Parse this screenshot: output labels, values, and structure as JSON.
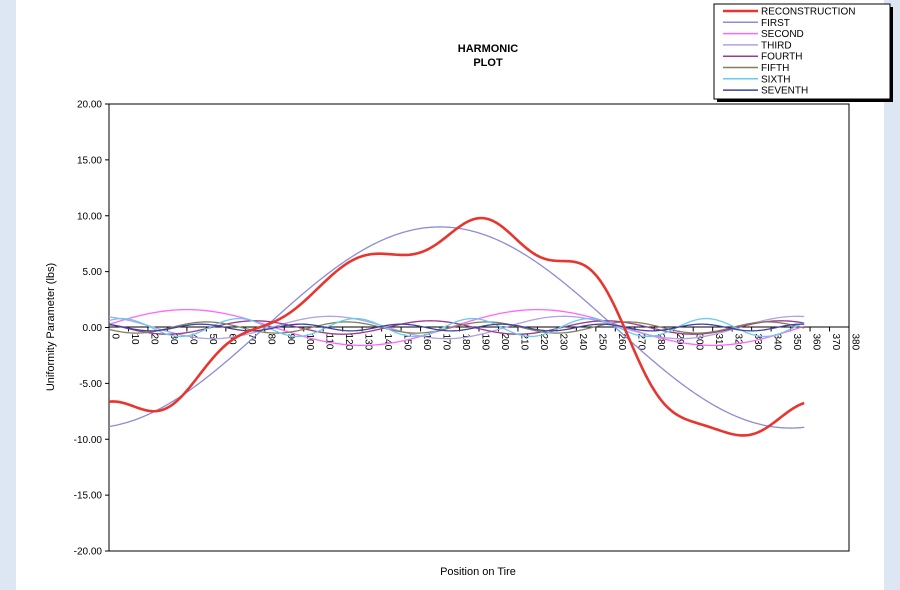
{
  "chart_data": {
    "type": "line",
    "title_lines": [
      "HARMONIC",
      "PLOT"
    ],
    "xlabel": "Position on Tire",
    "ylabel": "Uniformity Parameter (lbs)",
    "x_ticks": [
      0,
      10,
      20,
      30,
      40,
      50,
      60,
      70,
      80,
      90,
      100,
      110,
      120,
      130,
      140,
      150,
      160,
      170,
      180,
      190,
      200,
      210,
      220,
      230,
      240,
      250,
      260,
      270,
      280,
      290,
      300,
      310,
      320,
      330,
      340,
      350,
      360,
      370,
      380
    ],
    "xlim": [
      0,
      380
    ],
    "y_ticks": [
      "20.00",
      "15.00",
      "10.00",
      "5.00",
      "0.00",
      "-5.00",
      "-10.00",
      "-15.00",
      "-20.00"
    ],
    "ylim": [
      -20,
      20
    ],
    "x_start": 0,
    "x_end": 357,
    "series": [
      {
        "name": "RECONSTRUCTION",
        "color": "#e8352e",
        "width": 2.6,
        "reconstruction": true
      },
      {
        "name": "FIRST",
        "color": "#8c8cd8",
        "width": 1.3,
        "harmonic": 1,
        "amplitude": 9.0,
        "phase_deg": 190
      },
      {
        "name": "SECOND",
        "color": "#ff66ff",
        "width": 1.3,
        "harmonic": 2,
        "amplitude": 1.6,
        "phase_deg": -80
      },
      {
        "name": "THIRD",
        "color": "#b3a0e6",
        "width": 1.3,
        "harmonic": 3,
        "amplitude": 1.0,
        "phase_deg": 20
      },
      {
        "name": "FOURTH",
        "color": "#9b3c8c",
        "width": 1.3,
        "harmonic": 4,
        "amplitude": 0.6,
        "phase_deg": 60
      },
      {
        "name": "FIFTH",
        "color": "#808060",
        "width": 1.3,
        "harmonic": 5,
        "amplitude": 0.5,
        "phase_deg": 110
      },
      {
        "name": "SIXTH",
        "color": "#66ccee",
        "width": 1.3,
        "harmonic": 6,
        "amplitude": 0.8,
        "phase_deg": -40
      },
      {
        "name": "SEVENTH",
        "color": "#4040a0",
        "width": 1.3,
        "harmonic": 7,
        "amplitude": 0.3,
        "phase_deg": 30
      }
    ]
  }
}
